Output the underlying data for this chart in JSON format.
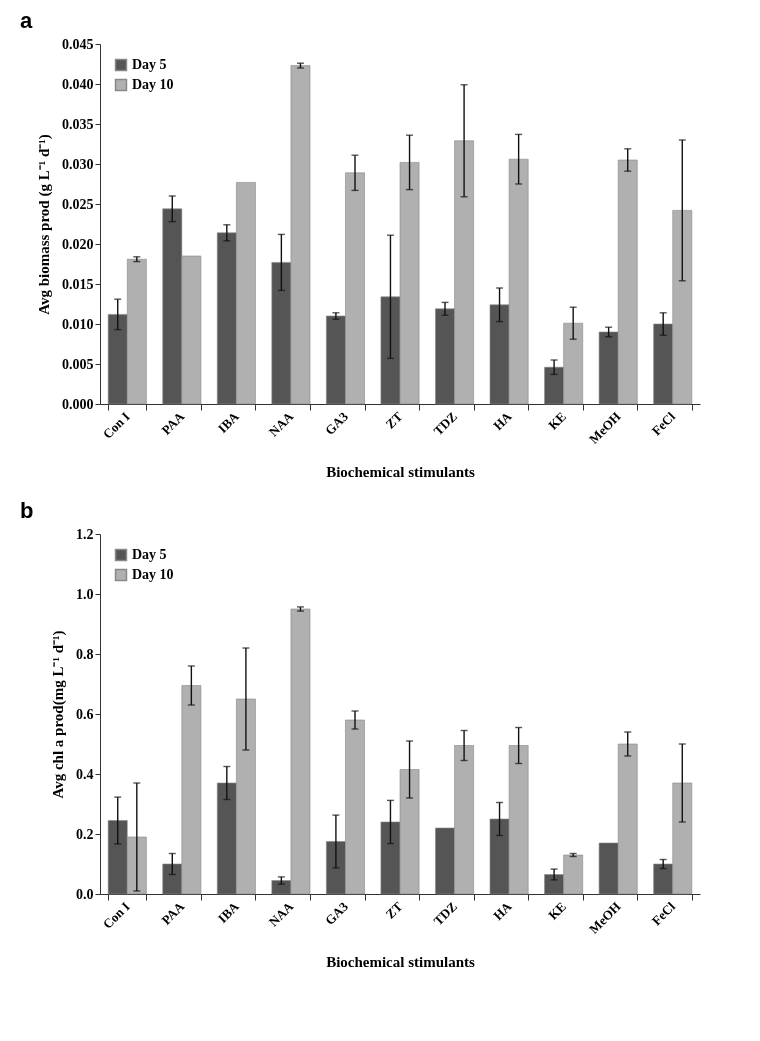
{
  "chart_data": [
    {
      "type": "bar",
      "title": "a",
      "xlabel": "Biochemical stimulants",
      "ylabel": "Avg biomass prod (g L⁻¹ d⁻¹)",
      "legend": "top left",
      "categories": [
        "Con I",
        "PAA",
        "IBA",
        "NAA",
        "GA3",
        "ZT",
        "TDZ",
        "HA",
        "KE",
        "MeOH",
        "FeCl"
      ],
      "ylim": [
        0,
        0.045
      ],
      "yticks": [
        {
          "value": 0,
          "label": "0.000"
        },
        {
          "value": 0.005,
          "label": "0.005"
        },
        {
          "value": 0.01,
          "label": "0.010"
        },
        {
          "value": 0.015,
          "label": "0.015"
        },
        {
          "value": 0.02,
          "label": "0.020"
        },
        {
          "value": 0.025,
          "label": "0.025"
        },
        {
          "value": 0.03,
          "label": "0.030"
        },
        {
          "value": 0.035,
          "label": "0.035"
        },
        {
          "value": 0.04,
          "label": "0.040"
        },
        {
          "value": 0.045,
          "label": "0.045"
        }
      ],
      "series": [
        {
          "name": "Day 5",
          "color": "#555555",
          "values": [
            0.0112,
            0.0244,
            0.0214,
            0.0177,
            0.011,
            0.0134,
            0.0119,
            0.0124,
            0.0046,
            0.009,
            0.01
          ],
          "errors": [
            0.0019,
            0.0016,
            0.001,
            0.0035,
            0.0004,
            0.0077,
            0.0008,
            0.0021,
            0.0009,
            0.0006,
            0.0014
          ]
        },
        {
          "name": "Day 10",
          "color": "#b0b0b0",
          "values": [
            0.0181,
            0.0185,
            0.0277,
            0.0423,
            0.0289,
            0.0302,
            0.0329,
            0.0306,
            0.0101,
            0.0305,
            0.0242
          ],
          "errors": [
            0.0003,
            null,
            null,
            0.0003,
            0.0022,
            0.0034,
            0.007,
            0.0031,
            0.002,
            0.0014,
            0.0088
          ]
        }
      ]
    },
    {
      "type": "bar",
      "title": "b",
      "xlabel": "Biochemical stimulants",
      "ylabel": "Avg chl a prod(mg L⁻¹ d⁻¹)",
      "legend": "top left",
      "categories": [
        "Con I",
        "PAA",
        "IBA",
        "NAA",
        "GA3",
        "ZT",
        "TDZ",
        "HA",
        "KE",
        "MeOH",
        "FeCl"
      ],
      "ylim": [
        0,
        1.2
      ],
      "yticks": [
        {
          "value": 0,
          "label": "0.0"
        },
        0.2,
        0.4,
        0.6,
        0.8,
        {
          "value": 1,
          "label": "1.0"
        },
        1.2
      ],
      "series": [
        {
          "name": "Day 5",
          "color": "#555555",
          "values": [
            0.245,
            0.1,
            0.37,
            0.045,
            0.175,
            0.24,
            0.22,
            0.25,
            0.065,
            0.17,
            0.1
          ],
          "errors": [
            0.078,
            0.035,
            0.055,
            0.012,
            0.088,
            0.072,
            null,
            0.055,
            0.018,
            null,
            0.015
          ]
        },
        {
          "name": "Day 10",
          "color": "#b0b0b0",
          "values": [
            0.19,
            0.695,
            0.65,
            0.95,
            0.58,
            0.415,
            0.495,
            0.495,
            0.13,
            0.5,
            0.37
          ],
          "errors": [
            0.18,
            0.065,
            0.17,
            0.007,
            0.03,
            0.095,
            0.05,
            0.06,
            0.005,
            0.04,
            0.13
          ]
        }
      ]
    }
  ]
}
